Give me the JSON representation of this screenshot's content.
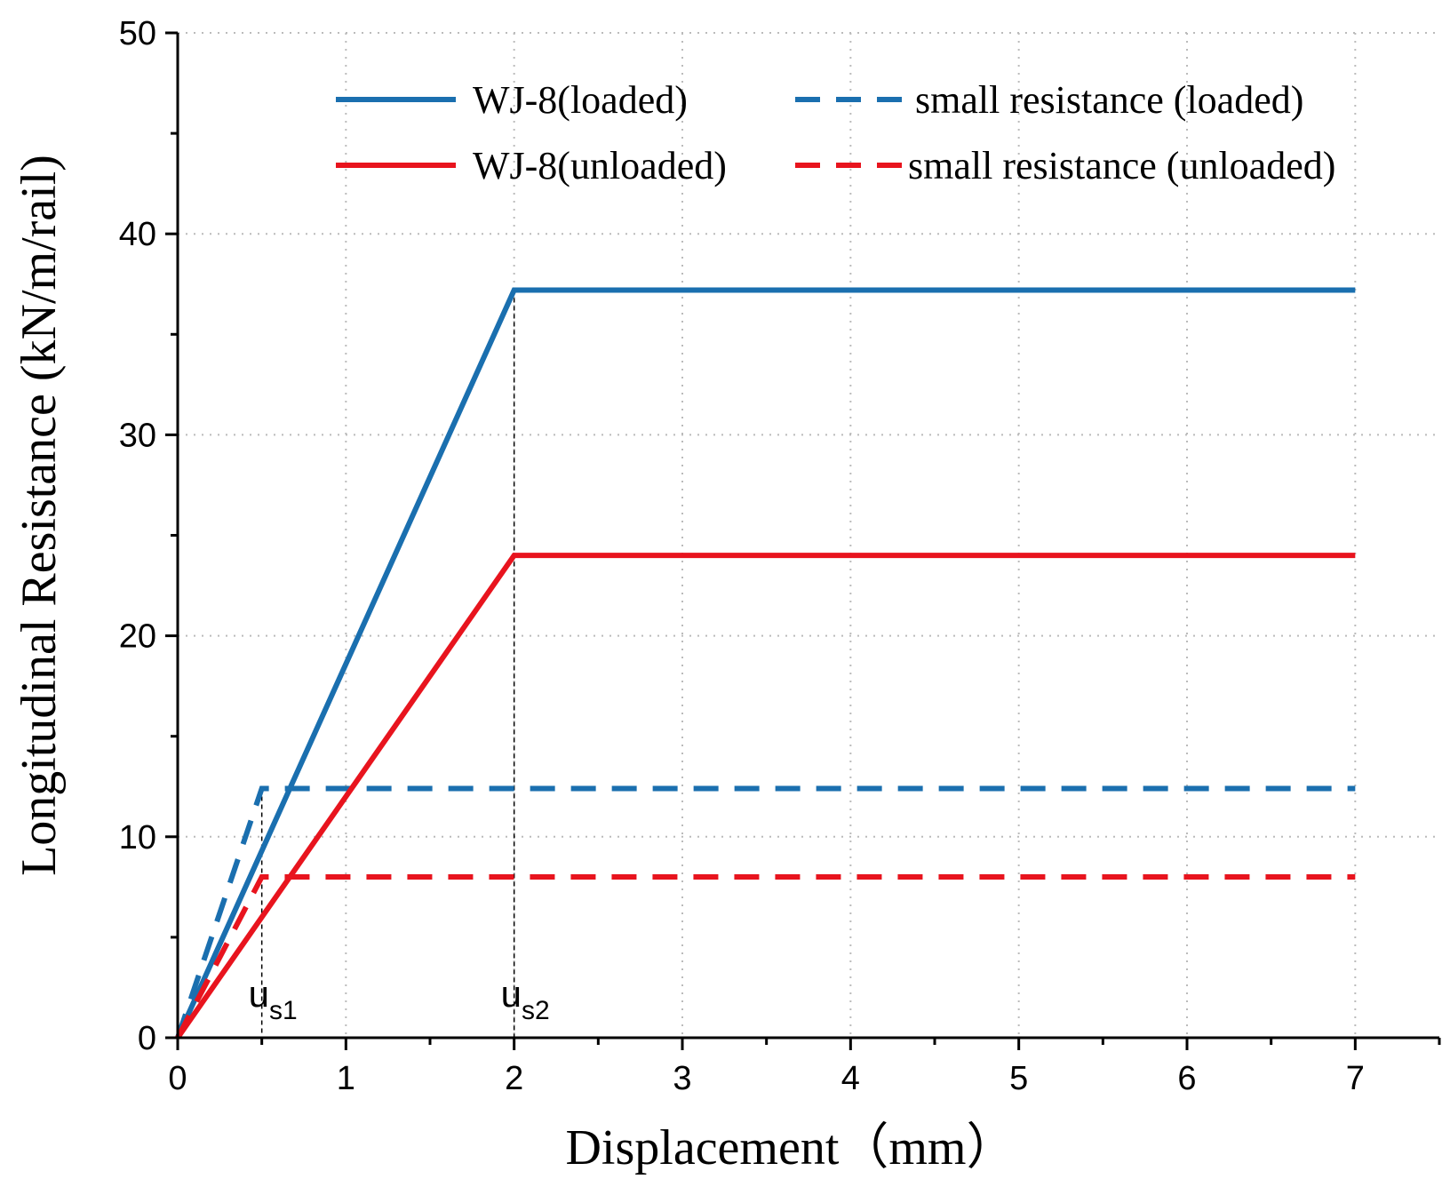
{
  "chart_data": {
    "type": "line",
    "title": "",
    "xlabel": "Displacement（mm）",
    "ylabel": "Longitudinal Resistance (kN/m/rail)",
    "xlim": [
      0,
      7.5
    ],
    "ylim": [
      0,
      50
    ],
    "xticks": [
      0,
      1,
      2,
      3,
      4,
      5,
      6,
      7
    ],
    "yticks": [
      0,
      10,
      20,
      30,
      40,
      50
    ],
    "grid": true,
    "legend_position": "top-right",
    "colors": {
      "blue": "#1a6faf",
      "red": "#e8141e",
      "guide": "#000000",
      "grid": "#bbbbbb"
    },
    "series": [
      {
        "name": "WJ-8(loaded)",
        "color": "#1a6faf",
        "style": "solid",
        "x": [
          0,
          2,
          7
        ],
        "y": [
          0,
          37.2,
          37.2
        ]
      },
      {
        "name": "small resistance (loaded)",
        "color": "#1a6faf",
        "style": "dashed",
        "x": [
          0,
          0.5,
          7
        ],
        "y": [
          0,
          12.4,
          12.4
        ]
      },
      {
        "name": "WJ-8(unloaded)",
        "color": "#e8141e",
        "style": "solid",
        "x": [
          0,
          2,
          7
        ],
        "y": [
          0,
          24,
          24
        ]
      },
      {
        "name": "small resistance (unloaded)",
        "color": "#e8141e",
        "style": "dashed",
        "x": [
          0,
          0.5,
          7
        ],
        "y": [
          0,
          8,
          8
        ]
      }
    ],
    "legend_order": [
      0,
      1,
      2,
      3
    ],
    "annotations": [
      {
        "base": "u",
        "sub": "s1",
        "x": 0.5,
        "y_top": 12.4
      },
      {
        "base": "u",
        "sub": "s2",
        "x": 2,
        "y_top": 37.2
      }
    ]
  }
}
